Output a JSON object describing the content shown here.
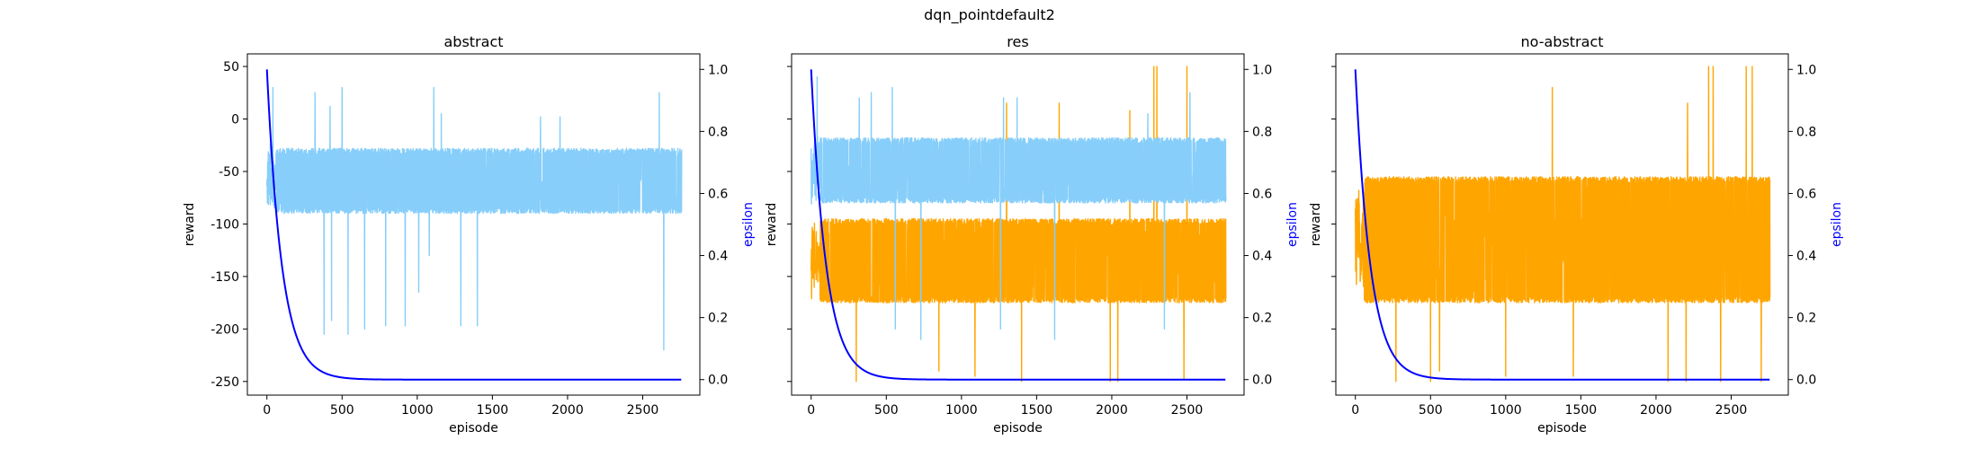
{
  "figure": {
    "title": "dqn_pointdefault2"
  },
  "colors": {
    "abstract": "#87CEFA",
    "no_abstract": "#FFA500",
    "epsilon": "#0000FF"
  },
  "chart_data": [
    {
      "type": "line",
      "title": "abstract",
      "xlabel": "episode",
      "ylabel": "reward",
      "y2label": "epsilon",
      "xlim": [
        -130,
        2880
      ],
      "xticks": [
        0,
        500,
        1000,
        1500,
        2000,
        2500
      ],
      "ylim": [
        -263,
        62
      ],
      "yticks": [
        50,
        0,
        -50,
        -100,
        -150,
        -200,
        -250
      ],
      "y2lim": [
        -0.05,
        1.05
      ],
      "y2ticks": [
        0.0,
        0.2,
        0.4,
        0.6,
        0.8,
        1.0
      ],
      "n_episodes": 2760,
      "series": [
        {
          "key": "abstract",
          "band": [
            -90,
            -28
          ],
          "spikes": [
            [
              40,
              30
            ],
            [
              320,
              25
            ],
            [
              420,
              12
            ],
            [
              500,
              30
            ],
            [
              1110,
              30
            ],
            [
              1160,
              5
            ],
            [
              1820,
              2
            ],
            [
              1950,
              2
            ],
            [
              2610,
              25
            ],
            [
              380,
              -205
            ],
            [
              430,
              -192
            ],
            [
              540,
              -205
            ],
            [
              650,
              -200
            ],
            [
              790,
              -197
            ],
            [
              920,
              -197
            ],
            [
              1010,
              -165
            ],
            [
              1290,
              -197
            ],
            [
              1400,
              -197
            ],
            [
              1080,
              -130
            ],
            [
              2640,
              -220
            ]
          ]
        }
      ],
      "epsilon": {
        "start": 1.0,
        "end": 0.0,
        "decay": 0.01
      }
    },
    {
      "type": "line",
      "title": "res",
      "xlabel": "episode",
      "ylabel": "reward",
      "y2label": "epsilon",
      "xlim": [
        -130,
        2880
      ],
      "xticks": [
        0,
        500,
        1000,
        1500,
        2000,
        2500
      ],
      "ylim": [
        -263,
        62
      ],
      "yticks": [
        50,
        0,
        -50,
        -100,
        -150,
        -200,
        -250
      ],
      "y2lim": [
        -0.05,
        1.05
      ],
      "y2ticks": [
        0.0,
        0.2,
        0.4,
        0.6,
        0.8,
        1.0
      ],
      "n_episodes": 2760,
      "series": [
        {
          "key": "no_abstract",
          "band": [
            -175,
            -95
          ],
          "spikes": [
            [
              1300,
              15
            ],
            [
              1650,
              15
            ],
            [
              2120,
              8
            ],
            [
              2280,
              50
            ],
            [
              2300,
              50
            ],
            [
              2500,
              50
            ],
            [
              300,
              -250
            ],
            [
              850,
              -240
            ],
            [
              1090,
              -245
            ],
            [
              1400,
              -250
            ],
            [
              1990,
              -250
            ],
            [
              2040,
              -250
            ],
            [
              2480,
              -248
            ]
          ]
        },
        {
          "key": "abstract",
          "band": [
            -80,
            -18
          ],
          "spikes": [
            [
              40,
              40
            ],
            [
              320,
              20
            ],
            [
              400,
              25
            ],
            [
              540,
              30
            ],
            [
              1280,
              20
            ],
            [
              1370,
              20
            ],
            [
              2240,
              5
            ],
            [
              2520,
              25
            ],
            [
              560,
              -200
            ],
            [
              730,
              -210
            ],
            [
              1260,
              -200
            ],
            [
              1620,
              -210
            ],
            [
              2350,
              -200
            ]
          ]
        }
      ],
      "epsilon": {
        "start": 1.0,
        "end": 0.0,
        "decay": 0.01
      }
    },
    {
      "type": "line",
      "title": "no-abstract",
      "xlabel": "episode",
      "ylabel": "reward",
      "y2label": "epsilon",
      "xlim": [
        -130,
        2880
      ],
      "xticks": [
        0,
        500,
        1000,
        1500,
        2000,
        2500
      ],
      "ylim": [
        -263,
        62
      ],
      "yticks": [
        50,
        0,
        -50,
        -100,
        -150,
        -200,
        -250
      ],
      "y2lim": [
        -0.05,
        1.05
      ],
      "y2ticks": [
        0.0,
        0.2,
        0.4,
        0.6,
        0.8,
        1.0
      ],
      "n_episodes": 2760,
      "series": [
        {
          "key": "no_abstract",
          "band": [
            -175,
            -55
          ],
          "spikes": [
            [
              1310,
              30
            ],
            [
              2210,
              15
            ],
            [
              2350,
              50
            ],
            [
              2380,
              50
            ],
            [
              2600,
              50
            ],
            [
              2640,
              50
            ],
            [
              270,
              -250
            ],
            [
              500,
              -250
            ],
            [
              560,
              -240
            ],
            [
              1000,
              -245
            ],
            [
              1450,
              -245
            ],
            [
              2080,
              -250
            ],
            [
              2200,
              -250
            ],
            [
              2430,
              -250
            ],
            [
              2700,
              -250
            ]
          ]
        }
      ],
      "epsilon": {
        "start": 1.0,
        "end": 0.0,
        "decay": 0.01
      }
    }
  ]
}
